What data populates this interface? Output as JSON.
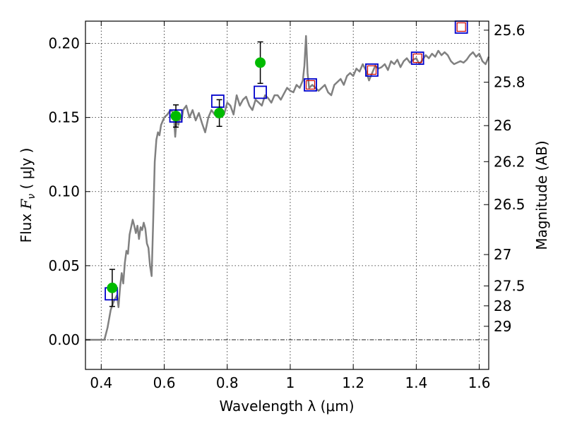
{
  "chart_data": {
    "type": "line",
    "xlabel": "Wavelength  λ (μm)",
    "ylabel": "Flux  F_ν  ( μJy )",
    "ylabel_parts": {
      "prefix": "Flux  ",
      "symbol": "F",
      "subscript": "ν",
      "suffix": "  ( μJy )"
    },
    "y2label": "Magnitude (AB)",
    "xlim": [
      0.35,
      1.63
    ],
    "ylim": [
      -0.02,
      0.215
    ],
    "xticks": [
      0.4,
      0.6,
      0.8,
      1.0,
      1.2,
      1.4,
      1.6
    ],
    "xtick_labels": [
      "0.4",
      "0.6",
      "0.8",
      "1",
      "1.2",
      "1.4",
      "1.6"
    ],
    "yticks": [
      0.0,
      0.05,
      0.1,
      0.15,
      0.2
    ],
    "ytick_labels": [
      "0.00",
      "0.05",
      "0.10",
      "0.15",
      "0.20"
    ],
    "magnitude_ticks": [
      {
        "label": "25.6",
        "flux": 0.2089
      },
      {
        "label": "25.8",
        "flux": 0.1738
      },
      {
        "label": "26",
        "flux": 0.1445
      },
      {
        "label": "26.2",
        "flux": 0.1202
      },
      {
        "label": "26.5",
        "flux": 0.0912
      },
      {
        "label": "27",
        "flux": 0.0575
      },
      {
        "label": "27.5",
        "flux": 0.0363
      },
      {
        "label": "28",
        "flux": 0.0229
      },
      {
        "label": "29",
        "flux": 0.0091
      }
    ],
    "grid": true,
    "colors": {
      "sed_line": "#808080",
      "photometry": "#00bb00",
      "model_box": "#0000cc",
      "model_box_inner": "#cc0000",
      "errorbar": "#000000"
    },
    "series": [
      {
        "kind": "sed-model-line",
        "x": [
          0.35,
          0.4,
          0.41,
          0.42,
          0.43,
          0.44,
          0.45,
          0.455,
          0.46,
          0.465,
          0.47,
          0.475,
          0.48,
          0.485,
          0.49,
          0.5,
          0.505,
          0.51,
          0.515,
          0.52,
          0.525,
          0.53,
          0.535,
          0.54,
          0.545,
          0.55,
          0.555,
          0.56,
          0.565,
          0.57,
          0.575,
          0.58,
          0.585,
          0.59,
          0.6,
          0.61,
          0.62,
          0.63,
          0.635,
          0.64,
          0.645,
          0.65,
          0.655,
          0.66,
          0.67,
          0.68,
          0.69,
          0.7,
          0.71,
          0.72,
          0.73,
          0.74,
          0.75,
          0.76,
          0.77,
          0.78,
          0.79,
          0.8,
          0.81,
          0.82,
          0.83,
          0.84,
          0.85,
          0.86,
          0.87,
          0.88,
          0.89,
          0.9,
          0.91,
          0.92,
          0.93,
          0.94,
          0.95,
          0.96,
          0.97,
          0.98,
          0.99,
          1.0,
          1.01,
          1.02,
          1.03,
          1.04,
          1.045,
          1.05,
          1.055,
          1.06,
          1.07,
          1.08,
          1.09,
          1.1,
          1.11,
          1.12,
          1.13,
          1.14,
          1.15,
          1.16,
          1.17,
          1.18,
          1.19,
          1.2,
          1.21,
          1.22,
          1.23,
          1.24,
          1.25,
          1.26,
          1.27,
          1.28,
          1.29,
          1.3,
          1.31,
          1.32,
          1.33,
          1.34,
          1.35,
          1.36,
          1.37,
          1.38,
          1.39,
          1.4,
          1.41,
          1.42,
          1.43,
          1.44,
          1.45,
          1.46,
          1.47,
          1.48,
          1.49,
          1.5,
          1.51,
          1.52,
          1.53,
          1.54,
          1.55,
          1.56,
          1.57,
          1.58,
          1.59,
          1.6,
          1.61,
          1.62,
          1.63
        ],
        "y": [
          0.0,
          0.0,
          0.0,
          0.008,
          0.02,
          0.026,
          0.03,
          0.022,
          0.036,
          0.045,
          0.038,
          0.052,
          0.06,
          0.058,
          0.071,
          0.081,
          0.077,
          0.072,
          0.077,
          0.068,
          0.076,
          0.074,
          0.079,
          0.075,
          0.065,
          0.062,
          0.05,
          0.043,
          0.08,
          0.12,
          0.135,
          0.14,
          0.138,
          0.145,
          0.15,
          0.152,
          0.155,
          0.153,
          0.137,
          0.151,
          0.145,
          0.15,
          0.148,
          0.155,
          0.158,
          0.15,
          0.155,
          0.148,
          0.153,
          0.146,
          0.14,
          0.15,
          0.155,
          0.152,
          0.15,
          0.157,
          0.152,
          0.16,
          0.158,
          0.152,
          0.165,
          0.158,
          0.162,
          0.164,
          0.158,
          0.155,
          0.162,
          0.16,
          0.158,
          0.165,
          0.163,
          0.16,
          0.165,
          0.165,
          0.162,
          0.166,
          0.17,
          0.168,
          0.167,
          0.172,
          0.17,
          0.175,
          0.185,
          0.205,
          0.18,
          0.17,
          0.172,
          0.17,
          0.168,
          0.17,
          0.172,
          0.167,
          0.165,
          0.172,
          0.174,
          0.176,
          0.172,
          0.178,
          0.18,
          0.178,
          0.183,
          0.181,
          0.186,
          0.182,
          0.175,
          0.18,
          0.185,
          0.183,
          0.184,
          0.186,
          0.182,
          0.188,
          0.186,
          0.189,
          0.184,
          0.188,
          0.19,
          0.187,
          0.189,
          0.19,
          0.186,
          0.189,
          0.192,
          0.19,
          0.193,
          0.191,
          0.195,
          0.192,
          0.194,
          0.192,
          0.188,
          0.186,
          0.187,
          0.188,
          0.187,
          0.189,
          0.192,
          0.194,
          0.191,
          0.193,
          0.188,
          0.186,
          0.191
        ]
      },
      {
        "kind": "model-boxes",
        "x": [
          0.432,
          0.637,
          0.77,
          0.905,
          1.064,
          1.259,
          1.404,
          1.543
        ],
        "y": [
          0.031,
          0.151,
          0.161,
          0.167,
          0.172,
          0.182,
          0.19,
          0.211
        ],
        "inner": [
          false,
          false,
          false,
          false,
          true,
          true,
          true,
          true
        ]
      },
      {
        "kind": "photometry",
        "x": [
          0.435,
          0.637,
          0.775,
          0.905
        ],
        "y": [
          0.035,
          0.151,
          0.153,
          0.187
        ],
        "yerr": [
          0.0125,
          0.0075,
          0.009,
          0.014
        ]
      }
    ]
  }
}
